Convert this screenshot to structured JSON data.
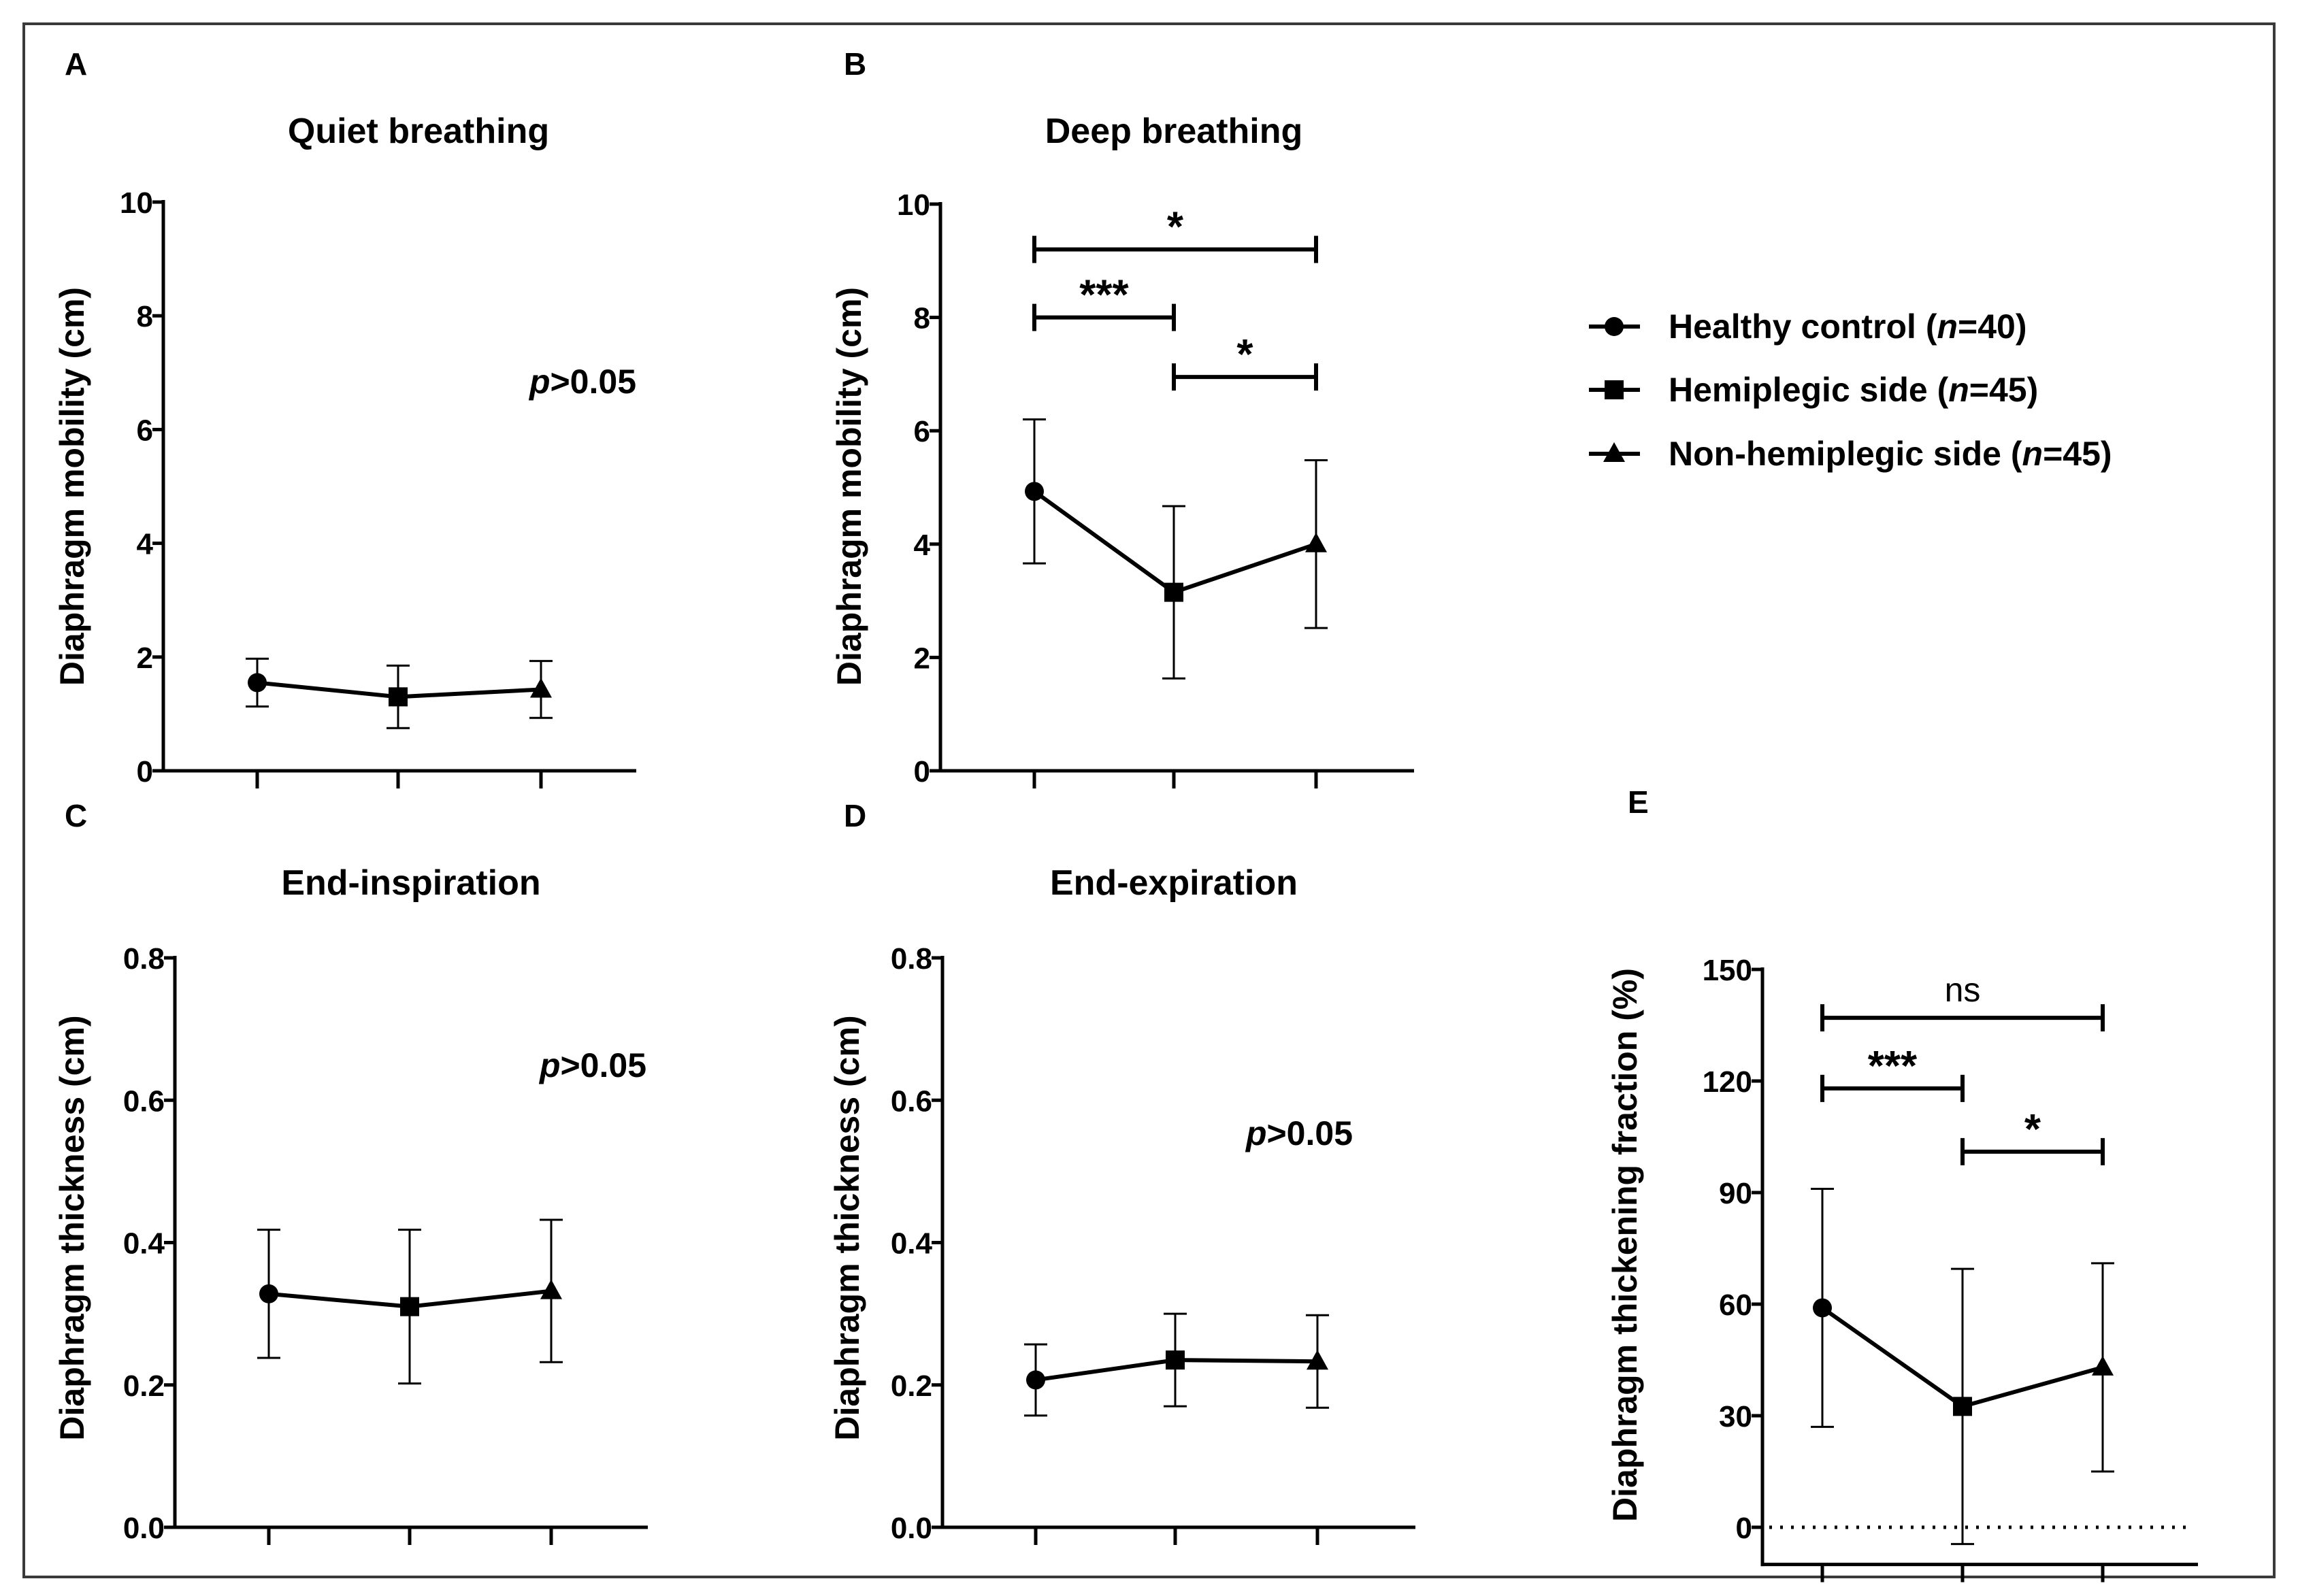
{
  "legend": [
    {
      "marker": "circle",
      "label": "Healthy control (",
      "italic": "n",
      "suffix": "=40)"
    },
    {
      "marker": "square",
      "label": "Hemiplegic side (",
      "italic": "n",
      "suffix": "=45)"
    },
    {
      "marker": "triangle",
      "label": "Non-hemiplegic side (",
      "italic": "n",
      "suffix": "=45)"
    }
  ],
  "chart_data": [
    {
      "panel": "A",
      "type": "line",
      "title": "Quiet breathing",
      "ylabel": "Diaphragm mobility (cm)",
      "ylim": [
        0,
        10
      ],
      "yticks": [
        "0",
        "2",
        "4",
        "6",
        "8",
        "10"
      ],
      "ytick_values": [
        0,
        2,
        4,
        6,
        8,
        10
      ],
      "categories": [
        "Healthy control",
        "Hemiplegic side",
        "Non-hemiplegic side"
      ],
      "values": [
        1.55,
        1.3,
        1.43
      ],
      "err": [
        0.42,
        0.55,
        0.5
      ],
      "annotation": {
        "italic": "p",
        "text": ">0.05"
      },
      "brackets": []
    },
    {
      "panel": "B",
      "type": "line",
      "title": "Deep breathing",
      "ylabel": "Diaphragm mobility (cm)",
      "ylim": [
        0,
        10
      ],
      "yticks": [
        "0",
        "2",
        "4",
        "6",
        "8",
        "10"
      ],
      "ytick_values": [
        0,
        2,
        4,
        6,
        8,
        10
      ],
      "categories": [
        "Healthy control",
        "Hemiplegic side",
        "Non-hemiplegic side"
      ],
      "values": [
        4.93,
        3.15,
        4.0
      ],
      "err": [
        1.27,
        1.52,
        1.48
      ],
      "annotation": null,
      "brackets": [
        {
          "from": 0,
          "to": 2,
          "y": 9.2,
          "label": "*"
        },
        {
          "from": 0,
          "to": 1,
          "y": 8.0,
          "label": "***"
        },
        {
          "from": 1,
          "to": 2,
          "y": 6.95,
          "label": "*"
        }
      ]
    },
    {
      "panel": "C",
      "type": "line",
      "title": "End-inspiration",
      "ylabel": "Diaphragm thickness (cm)",
      "ylim": [
        0,
        0.8
      ],
      "yticks": [
        "0.0",
        "0.2",
        "0.4",
        "0.6",
        "0.8"
      ],
      "ytick_values": [
        0,
        0.2,
        0.4,
        0.6,
        0.8
      ],
      "categories": [
        "Healthy control",
        "Hemiplegic side",
        "Non-hemiplegic side"
      ],
      "values": [
        0.328,
        0.31,
        0.332
      ],
      "err": [
        0.09,
        0.108,
        0.1
      ],
      "annotation": {
        "italic": "p",
        "text": ">0.05"
      },
      "brackets": []
    },
    {
      "panel": "D",
      "type": "line",
      "title": "End-expiration",
      "ylabel": "Diaphragm thickness (cm)",
      "ylim": [
        0,
        0.8
      ],
      "yticks": [
        "0.0",
        "0.2",
        "0.4",
        "0.6",
        "0.8"
      ],
      "ytick_values": [
        0,
        0.2,
        0.4,
        0.6,
        0.8
      ],
      "categories": [
        "Healthy control",
        "Hemiplegic side",
        "Non-hemiplegic side"
      ],
      "values": [
        0.207,
        0.235,
        0.233
      ],
      "err": [
        0.05,
        0.065,
        0.065
      ],
      "annotation": {
        "italic": "p",
        "text": ">0.05"
      },
      "brackets": []
    },
    {
      "panel": "E",
      "type": "line",
      "title": "",
      "ylabel": "Diaphragm thickening fraction (%)",
      "ylim": [
        -10,
        150
      ],
      "yticks": [
        "0",
        "30",
        "60",
        "90",
        "120",
        "150"
      ],
      "ytick_values": [
        0,
        30,
        60,
        90,
        120,
        150
      ],
      "categories": [
        "Healthy control",
        "Hemiplegic side",
        "Non-hemiplegic side"
      ],
      "values": [
        59,
        32.5,
        43
      ],
      "err": [
        32,
        37,
        28
      ],
      "annotation": null,
      "reference_line": 0,
      "brackets": [
        {
          "from": 0,
          "to": 2,
          "y": 137,
          "label": "ns"
        },
        {
          "from": 0,
          "to": 1,
          "y": 118,
          "label": "***"
        },
        {
          "from": 1,
          "to": 2,
          "y": 101,
          "label": "*"
        }
      ]
    }
  ]
}
